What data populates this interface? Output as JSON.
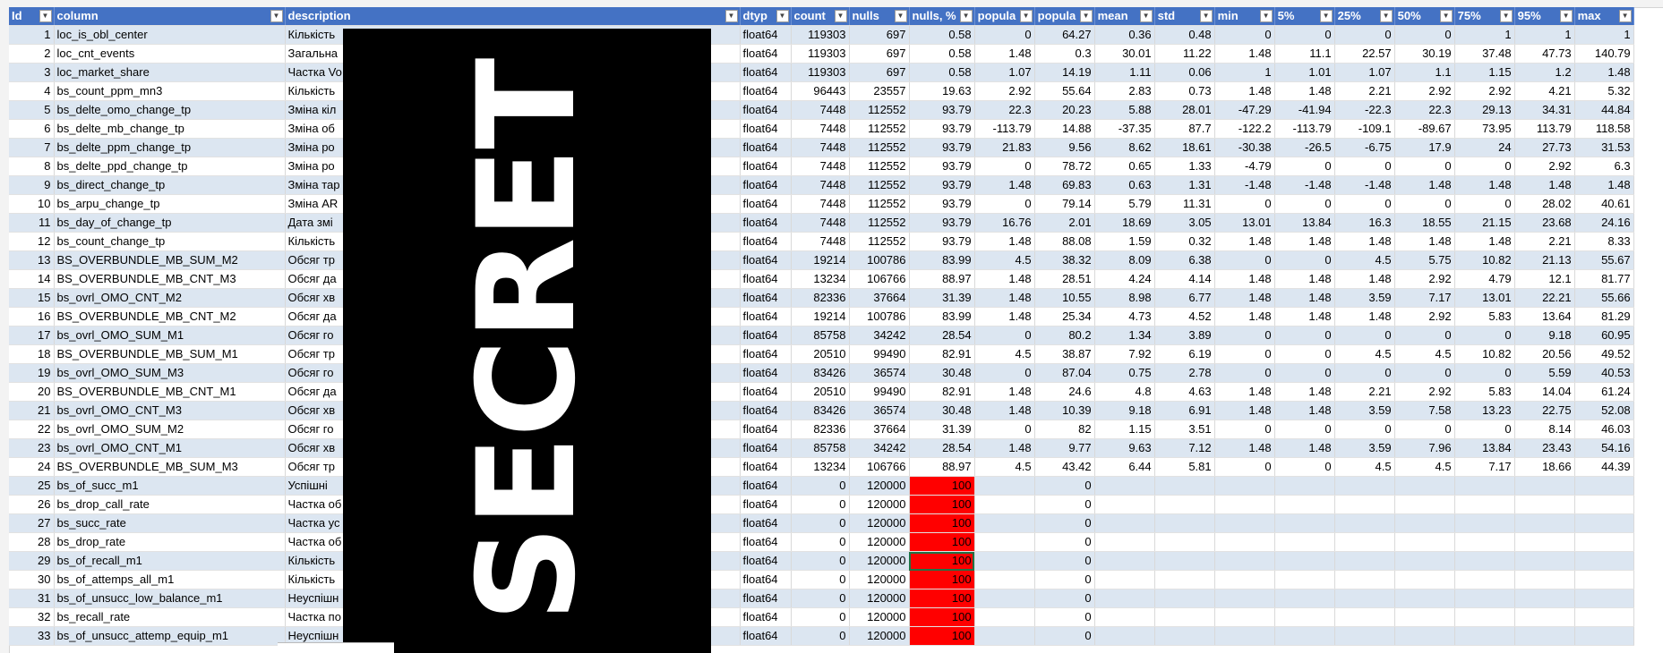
{
  "columns": [
    {
      "label": "Id",
      "align": "num"
    },
    {
      "label": "column",
      "align": "txt"
    },
    {
      "label": "description",
      "align": "txt"
    },
    {
      "label": "dtyp",
      "align": "txt"
    },
    {
      "label": "count",
      "align": "num"
    },
    {
      "label": "nulls",
      "align": "num"
    },
    {
      "label": "nulls, %",
      "align": "num"
    },
    {
      "label": "popula",
      "align": "num"
    },
    {
      "label": "popula",
      "align": "num"
    },
    {
      "label": "mean",
      "align": "num"
    },
    {
      "label": "std",
      "align": "num"
    },
    {
      "label": "min",
      "align": "num"
    },
    {
      "label": "5%",
      "align": "num"
    },
    {
      "label": "25%",
      "align": "num"
    },
    {
      "label": "50%",
      "align": "num"
    },
    {
      "label": "75%",
      "align": "num"
    },
    {
      "label": "95%",
      "align": "num"
    },
    {
      "label": "max",
      "align": "num"
    }
  ],
  "rows": [
    [
      "1",
      "loc_is_obl_center",
      "Кількість",
      "float64",
      "119303",
      "697",
      "0.58",
      "0",
      "64.27",
      "0.36",
      "0.48",
      "0",
      "0",
      "0",
      "0",
      "1",
      "1",
      "1"
    ],
    [
      "2",
      "loc_cnt_events",
      "Загальна",
      "float64",
      "119303",
      "697",
      "0.58",
      "1.48",
      "0.3",
      "30.01",
      "11.22",
      "1.48",
      "11.1",
      "22.57",
      "30.19",
      "37.48",
      "47.73",
      "140.79"
    ],
    [
      "3",
      "loc_market_share",
      "Частка Vo",
      "float64",
      "119303",
      "697",
      "0.58",
      "1.07",
      "14.19",
      "1.11",
      "0.06",
      "1",
      "1.01",
      "1.07",
      "1.1",
      "1.15",
      "1.2",
      "1.48"
    ],
    [
      "4",
      "bs_count_ppm_mn3",
      "Кількість",
      "float64",
      "96443",
      "23557",
      "19.63",
      "2.92",
      "55.64",
      "2.83",
      "0.73",
      "1.48",
      "1.48",
      "2.21",
      "2.92",
      "2.92",
      "4.21",
      "5.32"
    ],
    [
      "5",
      "bs_delte_omo_change_tp",
      "Зміна кіл",
      "float64",
      "7448",
      "112552",
      "93.79",
      "22.3",
      "20.23",
      "5.88",
      "28.01",
      "-47.29",
      "-41.94",
      "-22.3",
      "22.3",
      "29.13",
      "34.31",
      "44.84"
    ],
    [
      "6",
      "bs_delte_mb_change_tp",
      "Зміна об",
      "float64",
      "7448",
      "112552",
      "93.79",
      "-113.79",
      "14.88",
      "-37.35",
      "87.7",
      "-122.2",
      "-113.79",
      "-109.1",
      "-89.67",
      "73.95",
      "113.79",
      "118.58"
    ],
    [
      "7",
      "bs_delte_ppm_change_tp",
      "Зміна ро",
      "float64",
      "7448",
      "112552",
      "93.79",
      "21.83",
      "9.56",
      "8.62",
      "18.61",
      "-30.38",
      "-26.5",
      "-6.75",
      "17.9",
      "24",
      "27.73",
      "31.53"
    ],
    [
      "8",
      "bs_delte_ppd_change_tp",
      "Зміна ро",
      "float64",
      "7448",
      "112552",
      "93.79",
      "0",
      "78.72",
      "0.65",
      "1.33",
      "-4.79",
      "0",
      "0",
      "0",
      "0",
      "2.92",
      "6.3"
    ],
    [
      "9",
      "bs_direct_change_tp",
      "Зміна тар",
      "float64",
      "7448",
      "112552",
      "93.79",
      "1.48",
      "69.83",
      "0.63",
      "1.31",
      "-1.48",
      "-1.48",
      "-1.48",
      "1.48",
      "1.48",
      "1.48",
      "1.48"
    ],
    [
      "10",
      "bs_arpu_change_tp",
      "Зміна AR",
      "float64",
      "7448",
      "112552",
      "93.79",
      "0",
      "79.14",
      "5.79",
      "11.31",
      "0",
      "0",
      "0",
      "0",
      "0",
      "28.02",
      "40.61"
    ],
    [
      "11",
      "bs_day_of_change_tp",
      "Дата змі",
      "float64",
      "7448",
      "112552",
      "93.79",
      "16.76",
      "2.01",
      "18.69",
      "3.05",
      "13.01",
      "13.84",
      "16.3",
      "18.55",
      "21.15",
      "23.68",
      "24.16"
    ],
    [
      "12",
      "bs_count_change_tp",
      "Кількість",
      "float64",
      "7448",
      "112552",
      "93.79",
      "1.48",
      "88.08",
      "1.59",
      "0.32",
      "1.48",
      "1.48",
      "1.48",
      "1.48",
      "1.48",
      "2.21",
      "8.33"
    ],
    [
      "13",
      "BS_OVERBUNDLE_MB_SUM_M2",
      "Обсяг тр",
      "float64",
      "19214",
      "100786",
      "83.99",
      "4.5",
      "38.32",
      "8.09",
      "6.38",
      "0",
      "0",
      "4.5",
      "5.75",
      "10.82",
      "21.13",
      "55.67"
    ],
    [
      "14",
      "BS_OVERBUNDLE_MB_CNT_M3",
      "Обсяг да",
      "float64",
      "13234",
      "106766",
      "88.97",
      "1.48",
      "28.51",
      "4.24",
      "4.14",
      "1.48",
      "1.48",
      "1.48",
      "2.92",
      "4.79",
      "12.1",
      "81.77"
    ],
    [
      "15",
      "bs_ovrl_OMO_CNT_M2",
      "Обсяг хв",
      "float64",
      "82336",
      "37664",
      "31.39",
      "1.48",
      "10.55",
      "8.98",
      "6.77",
      "1.48",
      "1.48",
      "3.59",
      "7.17",
      "13.01",
      "22.21",
      "55.66"
    ],
    [
      "16",
      "BS_OVERBUNDLE_MB_CNT_M2",
      "Обсяг да",
      "float64",
      "19214",
      "100786",
      "83.99",
      "1.48",
      "25.34",
      "4.73",
      "4.52",
      "1.48",
      "1.48",
      "1.48",
      "2.92",
      "5.83",
      "13.64",
      "81.29"
    ],
    [
      "17",
      "bs_ovrl_OMO_SUM_M1",
      "Обсяг го",
      "float64",
      "85758",
      "34242",
      "28.54",
      "0",
      "80.2",
      "1.34",
      "3.89",
      "0",
      "0",
      "0",
      "0",
      "0",
      "9.18",
      "60.95"
    ],
    [
      "18",
      "BS_OVERBUNDLE_MB_SUM_M1",
      "Обсяг тр",
      "float64",
      "20510",
      "99490",
      "82.91",
      "4.5",
      "38.87",
      "7.92",
      "6.19",
      "0",
      "0",
      "4.5",
      "4.5",
      "10.82",
      "20.56",
      "49.52"
    ],
    [
      "19",
      "bs_ovrl_OMO_SUM_M3",
      "Обсяг го",
      "float64",
      "83426",
      "36574",
      "30.48",
      "0",
      "87.04",
      "0.75",
      "2.78",
      "0",
      "0",
      "0",
      "0",
      "0",
      "5.59",
      "40.53"
    ],
    [
      "20",
      "BS_OVERBUNDLE_MB_CNT_M1",
      "Обсяг да",
      "float64",
      "20510",
      "99490",
      "82.91",
      "1.48",
      "24.6",
      "4.8",
      "4.63",
      "1.48",
      "1.48",
      "2.21",
      "2.92",
      "5.83",
      "14.04",
      "61.24"
    ],
    [
      "21",
      "bs_ovrl_OMO_CNT_M3",
      "Обсяг хв",
      "float64",
      "83426",
      "36574",
      "30.48",
      "1.48",
      "10.39",
      "9.18",
      "6.91",
      "1.48",
      "1.48",
      "3.59",
      "7.58",
      "13.23",
      "22.75",
      "52.08"
    ],
    [
      "22",
      "bs_ovrl_OMO_SUM_M2",
      "Обсяг го",
      "float64",
      "82336",
      "37664",
      "31.39",
      "0",
      "82",
      "1.15",
      "3.51",
      "0",
      "0",
      "0",
      "0",
      "0",
      "8.14",
      "46.03"
    ],
    [
      "23",
      "bs_ovrl_OMO_CNT_M1",
      "Обсяг хв",
      "float64",
      "85758",
      "34242",
      "28.54",
      "1.48",
      "9.77",
      "9.63",
      "7.12",
      "1.48",
      "1.48",
      "3.59",
      "7.96",
      "13.84",
      "23.43",
      "54.16"
    ],
    [
      "24",
      "BS_OVERBUNDLE_MB_SUM_M3",
      "Обсяг тр",
      "float64",
      "13234",
      "106766",
      "88.97",
      "4.5",
      "43.42",
      "6.44",
      "5.81",
      "0",
      "0",
      "4.5",
      "4.5",
      "7.17",
      "18.66",
      "44.39"
    ],
    [
      "25",
      "bs_of_succ_m1",
      "Успішні",
      "float64",
      "0",
      "120000",
      "100",
      "",
      "0",
      "",
      "",
      "",
      "",
      "",
      "",
      "",
      "",
      ""
    ],
    [
      "26",
      "bs_drop_call_rate",
      "Частка об",
      "float64",
      "0",
      "120000",
      "100",
      "",
      "0",
      "",
      "",
      "",
      "",
      "",
      "",
      "",
      "",
      ""
    ],
    [
      "27",
      "bs_succ_rate",
      "Частка ус",
      "float64",
      "0",
      "120000",
      "100",
      "",
      "0",
      "",
      "",
      "",
      "",
      "",
      "",
      "",
      "",
      ""
    ],
    [
      "28",
      "bs_drop_rate",
      "Частка об",
      "float64",
      "0",
      "120000",
      "100",
      "",
      "0",
      "",
      "",
      "",
      "",
      "",
      "",
      "",
      "",
      ""
    ],
    [
      "29",
      "bs_of_recall_m1",
      "Кількість",
      "float64",
      "0",
      "120000",
      "100",
      "",
      "0",
      "",
      "",
      "",
      "",
      "",
      "",
      "",
      "",
      ""
    ],
    [
      "30",
      "bs_of_attemps_all_m1",
      "Кількість",
      "float64",
      "0",
      "120000",
      "100",
      "",
      "0",
      "",
      "",
      "",
      "",
      "",
      "",
      "",
      "",
      ""
    ],
    [
      "31",
      "bs_of_unsucc_low_balance_m1",
      "Неуспішн",
      "float64",
      "0",
      "120000",
      "100",
      "",
      "0",
      "",
      "",
      "",
      "",
      "",
      "",
      "",
      "",
      ""
    ],
    [
      "32",
      "bs_recall_rate",
      "Частка по",
      "float64",
      "0",
      "120000",
      "100",
      "",
      "0",
      "",
      "",
      "",
      "",
      "",
      "",
      "",
      "",
      ""
    ],
    [
      "33",
      "bs_of_unsucc_attemp_equip_m1",
      "Неуспішн",
      "float64",
      "0",
      "120000",
      "100",
      "",
      "0",
      "",
      "",
      "",
      "",
      "",
      "",
      "",
      "",
      ""
    ]
  ],
  "red_from_row": 24,
  "selected_row": 28,
  "overlay": {
    "label": "SECRET"
  },
  "sheet_tab": "",
  "colors": {
    "header": "#4472c4",
    "band": "#dce6f1",
    "highlight": "#ff0000"
  }
}
